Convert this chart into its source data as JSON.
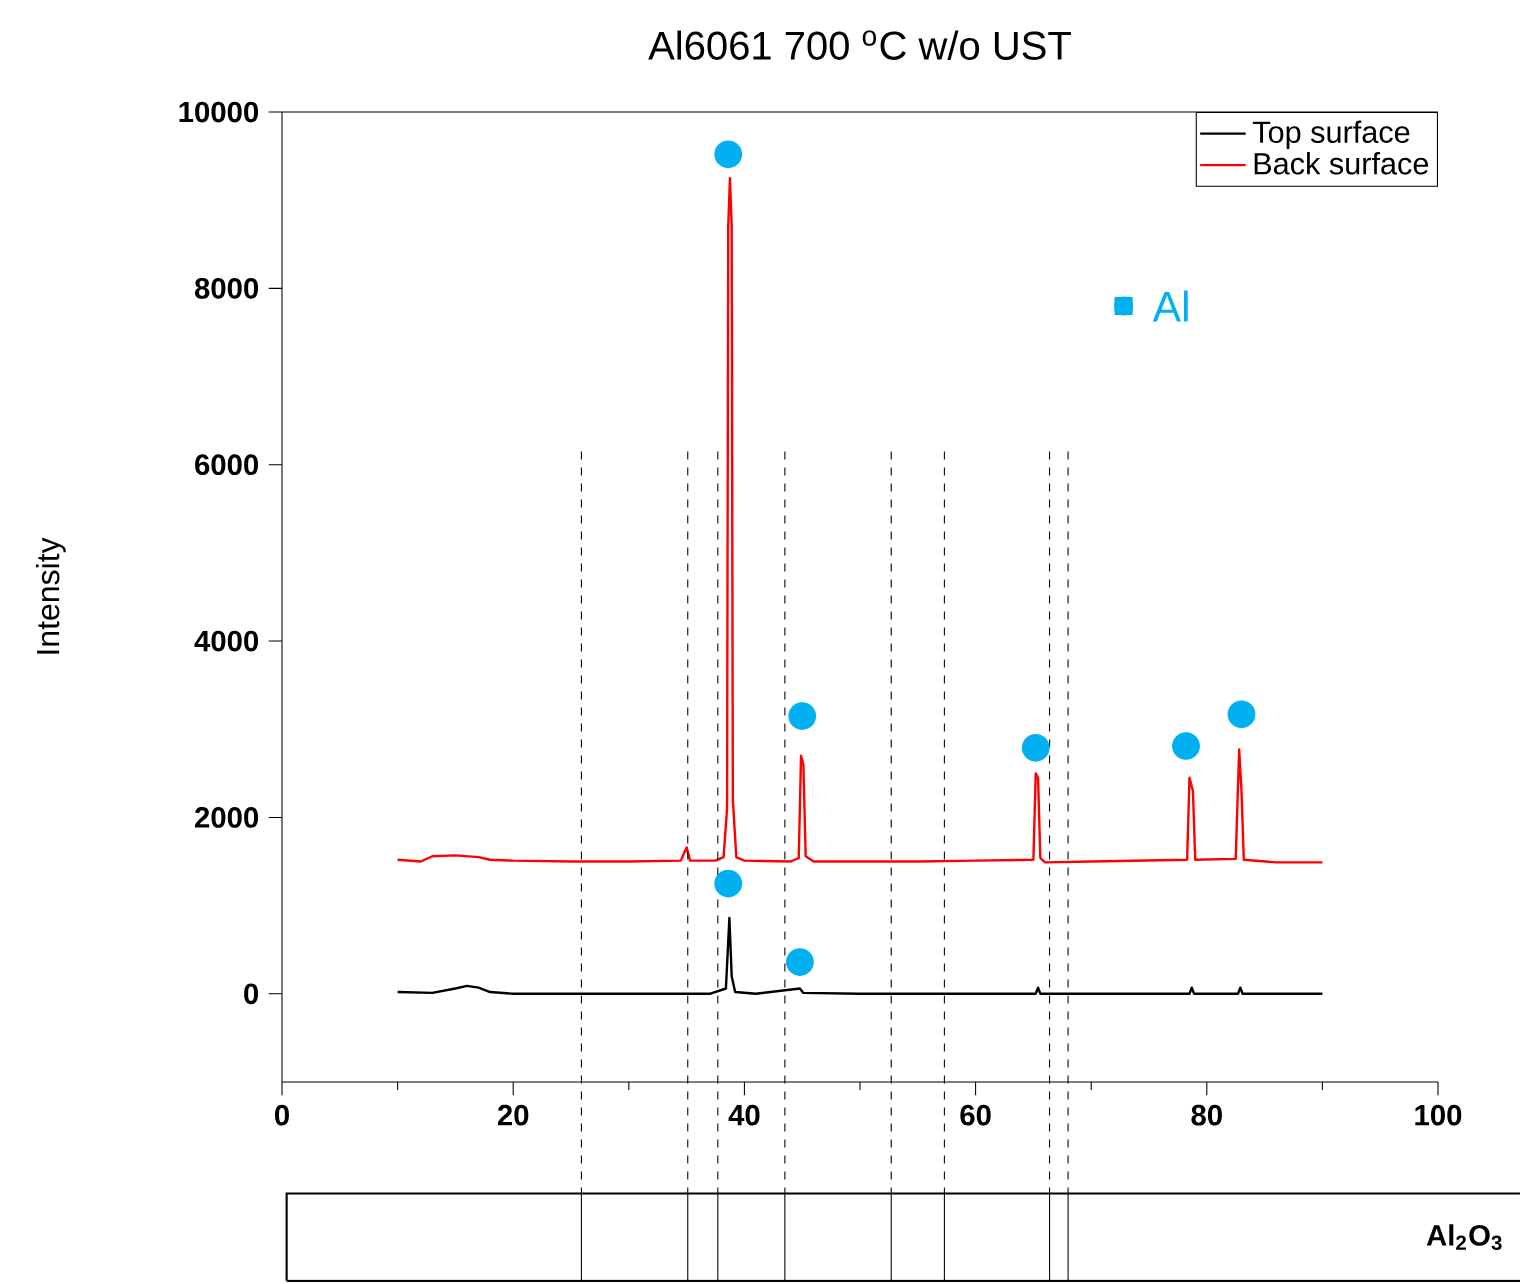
{
  "chart_data": {
    "type": "line",
    "title": "Al6061 700 $^{o}$C w/o UST",
    "ylabel": "Intensity",
    "xlim": [
      0,
      100
    ],
    "xticks": [
      0,
      20,
      40,
      60,
      80,
      100
    ],
    "ylim": [
      -1000,
      10000
    ],
    "yticks": [
      0,
      2000,
      4000,
      6000,
      8000,
      10000
    ],
    "legend": "top right",
    "grid": false,
    "line_style": "solid",
    "series": [
      {
        "name": "Top surface",
        "color": "#000000",
        "x": [
          10,
          13,
          15,
          16,
          17,
          18,
          20,
          30,
          37,
          38.4,
          38.7,
          38.9,
          39.2,
          41,
          44.8,
          45.1,
          50,
          65.2,
          65.4,
          65.6,
          78.5,
          78.7,
          78.9,
          82.7,
          82.9,
          83.1,
          90
        ],
        "values": [
          20,
          10,
          60,
          90,
          70,
          20,
          0,
          0,
          0,
          60,
          860,
          200,
          20,
          0,
          60,
          10,
          0,
          0,
          70,
          0,
          0,
          70,
          0,
          0,
          70,
          0,
          0
        ]
      },
      {
        "name": "Back surface",
        "color": "#ff0000",
        "x": [
          10,
          12,
          13,
          15,
          17,
          18,
          20,
          25,
          30,
          34.5,
          35.0,
          35.3,
          37.5,
          38.2,
          38.5,
          38.6,
          38.75,
          38.9,
          39.0,
          39.3,
          40,
          44,
          44.7,
          44.9,
          45.1,
          45.3,
          46,
          55,
          60,
          65,
          65.2,
          65.4,
          65.6,
          66,
          70,
          78.3,
          78.5,
          78.8,
          79.0,
          82.5,
          82.8,
          83.0,
          83.2,
          86,
          90
        ],
        "values": [
          1520,
          1500,
          1560,
          1570,
          1550,
          1520,
          1510,
          1500,
          1500,
          1510,
          1660,
          1510,
          1510,
          1550,
          2100,
          8700,
          9250,
          8700,
          2200,
          1550,
          1510,
          1500,
          1540,
          2700,
          2600,
          1560,
          1500,
          1500,
          1510,
          1520,
          2500,
          2450,
          1540,
          1490,
          1500,
          1520,
          2450,
          2300,
          1520,
          1530,
          2770,
          2300,
          1520,
          1490,
          1490
        ]
      },
      {
        "name": "Al",
        "type": "scatter",
        "marker": "circle",
        "color": "#00b0f0",
        "x": [
          38.6,
          45.0,
          65.2,
          78.2,
          83.0,
          38.6,
          44.8
        ],
        "values": [
          9520,
          3150,
          2790,
          2810,
          3170,
          1250,
          360
        ]
      }
    ],
    "ref_lines": [
      {
        "axis": "x",
        "value": 25.9,
        "color": "#000000",
        "line_style": "dashed"
      },
      {
        "axis": "x",
        "value": 35.1,
        "color": "#000000",
        "line_style": "dashed"
      },
      {
        "axis": "x",
        "value": 37.7,
        "color": "#000000",
        "line_style": "dashed"
      },
      {
        "axis": "x",
        "value": 43.5,
        "color": "#000000",
        "line_style": "dashed"
      },
      {
        "axis": "x",
        "value": 52.7,
        "color": "#000000",
        "line_style": "dashed"
      },
      {
        "axis": "x",
        "value": 57.3,
        "color": "#000000",
        "line_style": "dashed"
      },
      {
        "axis": "x",
        "value": 66.4,
        "color": "#000000",
        "line_style": "dashed"
      },
      {
        "axis": "x",
        "value": 68.0,
        "color": "#000000",
        "line_style": "dashed"
      }
    ],
    "annotations": [
      "Al$_{2}$O$_{3}$"
    ]
  }
}
